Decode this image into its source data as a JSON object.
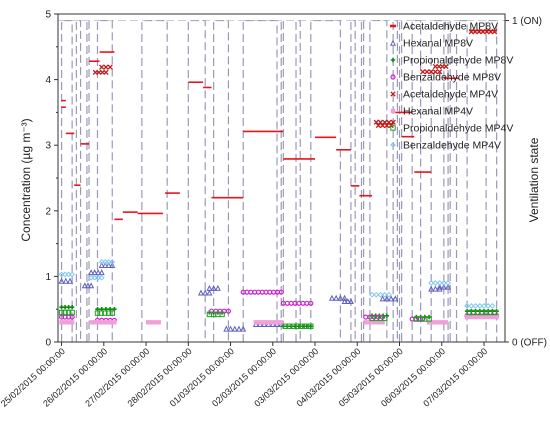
{
  "chart_data": {
    "type": "line",
    "ylabel": "Concentration (µg m⁻³)",
    "y2label": "Ventilation state",
    "ylim": [
      0,
      5
    ],
    "yticks": [
      "0",
      "1",
      "2",
      "3",
      "4",
      "5"
    ],
    "y2ticks": [
      "0 (OFF)",
      "1 (ON)"
    ],
    "xlim": [
      0,
      10
    ],
    "xticks": [
      {
        "x": 0,
        "label": "25/02/2015 00:00:00"
      },
      {
        "x": 1,
        "label": "26/02/2015 00:00:00"
      },
      {
        "x": 2,
        "label": "27/02/2015 00:00:00"
      },
      {
        "x": 3,
        "label": "28/02/2015 00:00:00"
      },
      {
        "x": 4,
        "label": "01/03/2015 00:00:00"
      },
      {
        "x": 5,
        "label": "02/03/2015 00:00:00"
      },
      {
        "x": 6,
        "label": "03/03/2015 00:00:00"
      },
      {
        "x": 7,
        "label": "04/03/2015 00:00:00"
      },
      {
        "x": 8,
        "label": "05/03/2015 00:00:00"
      },
      {
        "x": 9,
        "label": "06/03/2015 00:00:00"
      },
      {
        "x": 10,
        "label": "07/03/2015 00:00:00"
      }
    ],
    "legend_position": "top-right",
    "ventilation_on_periods": [
      [
        0.0,
        0.25
      ],
      [
        0.35,
        0.45
      ],
      [
        0.6,
        0.65
      ],
      [
        0.85,
        1.2
      ],
      [
        1.9,
        2.5
      ],
      [
        3.0,
        3.4
      ],
      [
        3.6,
        3.95
      ],
      [
        4.3,
        5.1
      ],
      [
        5.2,
        5.25
      ],
      [
        5.55,
        5.65
      ],
      [
        5.9,
        6.6
      ],
      [
        6.85,
        6.95
      ],
      [
        7.1,
        7.15
      ],
      [
        7.3,
        7.7
      ],
      [
        7.85,
        7.95
      ],
      [
        8.0,
        8.05
      ],
      [
        8.3,
        8.5
      ],
      [
        8.75,
        9.05
      ],
      [
        9.15,
        9.2
      ],
      [
        9.35,
        9.6
      ],
      [
        10.05,
        10.3
      ]
    ],
    "series": [
      {
        "name": "Acetaldehyde MP8V",
        "color": "#e8141c",
        "marker": "dash",
        "segments": [
          {
            "x0": 0.0,
            "x1": 0.1,
            "y": 3.68
          },
          {
            "x0": 0.0,
            "x1": 0.1,
            "y": 3.58
          },
          {
            "x0": 0.1,
            "x1": 0.3,
            "y": 3.18
          },
          {
            "x0": 0.3,
            "x1": 0.45,
            "y": 2.39
          },
          {
            "x0": 0.45,
            "x1": 0.65,
            "y": 3.02
          },
          {
            "x0": 0.65,
            "x1": 0.9,
            "y": 4.28
          },
          {
            "x0": 0.9,
            "x1": 1.25,
            "y": 4.42
          },
          {
            "x0": 1.25,
            "x1": 1.45,
            "y": 1.87
          },
          {
            "x0": 1.45,
            "x1": 1.8,
            "y": 1.98
          },
          {
            "x0": 1.8,
            "x1": 2.4,
            "y": 1.96
          },
          {
            "x0": 2.45,
            "x1": 2.8,
            "y": 2.27
          },
          {
            "x0": 3.0,
            "x1": 3.35,
            "y": 3.96
          },
          {
            "x0": 3.35,
            "x1": 3.55,
            "y": 3.88
          },
          {
            "x0": 3.55,
            "x1": 4.3,
            "y": 2.2
          },
          {
            "x0": 4.3,
            "x1": 5.25,
            "y": 3.21
          },
          {
            "x0": 5.25,
            "x1": 6.0,
            "y": 2.79
          },
          {
            "x0": 6.0,
            "x1": 6.5,
            "y": 3.12
          },
          {
            "x0": 6.5,
            "x1": 6.85,
            "y": 2.93
          },
          {
            "x0": 6.85,
            "x1": 7.05,
            "y": 2.38
          },
          {
            "x0": 7.05,
            "x1": 7.35,
            "y": 2.23
          },
          {
            "x0": 7.9,
            "x1": 8.3,
            "y": 3.5
          },
          {
            "x0": 8.05,
            "x1": 8.35,
            "y": 3.13
          },
          {
            "x0": 8.35,
            "x1": 8.75,
            "y": 2.59
          },
          {
            "x0": 9.05,
            "x1": 9.4,
            "y": 4.02
          },
          {
            "x0": 9.65,
            "x1": 10.3,
            "y": 4.75
          }
        ]
      },
      {
        "name": "Hexanal MP8V",
        "color": "#6060c0",
        "marker": "triangle",
        "segments": [
          {
            "x0": 0.0,
            "x1": 0.2,
            "y": 0.93
          },
          {
            "x0": 0.55,
            "x1": 0.7,
            "y": 0.86
          },
          {
            "x0": 0.7,
            "x1": 0.95,
            "y": 1.06
          },
          {
            "x0": 0.95,
            "x1": 1.2,
            "y": 1.17
          },
          {
            "x0": 3.3,
            "x1": 3.5,
            "y": 0.75
          },
          {
            "x0": 3.5,
            "x1": 3.7,
            "y": 0.82
          },
          {
            "x0": 3.9,
            "x1": 4.3,
            "y": 0.2
          },
          {
            "x0": 4.6,
            "x1": 5.2,
            "y": 0.27
          },
          {
            "x0": 6.4,
            "x1": 6.7,
            "y": 0.67
          },
          {
            "x0": 6.7,
            "x1": 6.85,
            "y": 0.62
          },
          {
            "x0": 7.6,
            "x1": 7.9,
            "y": 0.66
          },
          {
            "x0": 8.75,
            "x1": 8.95,
            "y": 0.81
          },
          {
            "x0": 8.95,
            "x1": 9.15,
            "y": 0.84
          }
        ]
      },
      {
        "name": "Propionaldehyde MP8V",
        "color": "#108a10",
        "marker": "plus",
        "segments": [
          {
            "x0": 0.0,
            "x1": 0.25,
            "y": 0.53
          },
          {
            "x0": 0.85,
            "x1": 1.25,
            "y": 0.5
          },
          {
            "x0": 3.5,
            "x1": 3.8,
            "y": 0.45
          },
          {
            "x0": 5.25,
            "x1": 5.9,
            "y": 0.24
          },
          {
            "x0": 7.35,
            "x1": 7.7,
            "y": 0.4
          },
          {
            "x0": 8.4,
            "x1": 8.7,
            "y": 0.38
          },
          {
            "x0": 9.6,
            "x1": 10.3,
            "y": 0.47
          }
        ]
      },
      {
        "name": "Benzaldehyde MP8V",
        "color": "#d020d0",
        "marker": "circle",
        "segments": [
          {
            "x0": 0.0,
            "x1": 0.25,
            "y": 0.38
          },
          {
            "x0": 0.85,
            "x1": 1.25,
            "y": 0.33
          },
          {
            "x0": 3.55,
            "x1": 3.95,
            "y": 0.47
          },
          {
            "x0": 4.3,
            "x1": 5.2,
            "y": 0.76
          },
          {
            "x0": 5.25,
            "x1": 5.9,
            "y": 0.59
          },
          {
            "x0": 7.2,
            "x1": 7.6,
            "y": 0.38
          },
          {
            "x0": 8.3,
            "x1": 8.55,
            "y": 0.35
          },
          {
            "x0": 9.6,
            "x1": 10.3,
            "y": 0.4
          }
        ]
      },
      {
        "name": "Acetaldehyde MP4V",
        "color": "#c41818",
        "marker": "x",
        "segments": [
          {
            "x0": 0.8,
            "x1": 1.05,
            "y": 4.11
          },
          {
            "x0": 0.95,
            "x1": 1.15,
            "y": 4.19
          },
          {
            "x0": 7.45,
            "x1": 7.85,
            "y": 3.35
          },
          {
            "x0": 7.5,
            "x1": 7.8,
            "y": 3.3
          },
          {
            "x0": 8.55,
            "x1": 8.95,
            "y": 4.12
          },
          {
            "x0": 8.85,
            "x1": 9.1,
            "y": 4.2
          },
          {
            "x0": 9.7,
            "x1": 10.25,
            "y": 4.73
          }
        ]
      },
      {
        "name": "Hexanal MP4V",
        "color": "#f0a0d8",
        "marker": "square-filled",
        "segments": [
          {
            "x0": 0.0,
            "x1": 0.25,
            "y": 0.3
          },
          {
            "x0": 0.7,
            "x1": 1.25,
            "y": 0.3
          },
          {
            "x0": 2.05,
            "x1": 2.3,
            "y": 0.3
          },
          {
            "x0": 4.6,
            "x1": 5.2,
            "y": 0.3
          },
          {
            "x0": 7.2,
            "x1": 7.6,
            "y": 0.3
          },
          {
            "x0": 8.7,
            "x1": 9.1,
            "y": 0.3
          },
          {
            "x0": 9.6,
            "x1": 10.3,
            "y": 0.38
          }
        ]
      },
      {
        "name": "Propionaldehyde MP4V",
        "color": "#20a020",
        "marker": "square-open",
        "segments": [
          {
            "x0": 0.0,
            "x1": 0.25,
            "y": 0.45
          },
          {
            "x0": 0.85,
            "x1": 1.2,
            "y": 0.44
          },
          {
            "x0": 3.5,
            "x1": 3.8,
            "y": 0.42
          },
          {
            "x0": 5.3,
            "x1": 5.9,
            "y": 0.24
          },
          {
            "x0": 7.35,
            "x1": 7.65,
            "y": 0.36
          },
          {
            "x0": 8.4,
            "x1": 8.7,
            "y": 0.35
          },
          {
            "x0": 9.65,
            "x1": 10.25,
            "y": 0.45
          }
        ]
      },
      {
        "name": "Benzaldehyde MP4V",
        "color": "#80c8f0",
        "marker": "diamond",
        "segments": [
          {
            "x0": 0.0,
            "x1": 0.25,
            "y": 1.03
          },
          {
            "x0": 0.7,
            "x1": 0.95,
            "y": 0.98
          },
          {
            "x0": 0.95,
            "x1": 1.2,
            "y": 1.22
          },
          {
            "x0": 7.35,
            "x1": 7.75,
            "y": 0.72
          },
          {
            "x0": 8.75,
            "x1": 9.15,
            "y": 0.9
          },
          {
            "x0": 9.6,
            "x1": 10.2,
            "y": 0.55
          }
        ]
      }
    ]
  }
}
